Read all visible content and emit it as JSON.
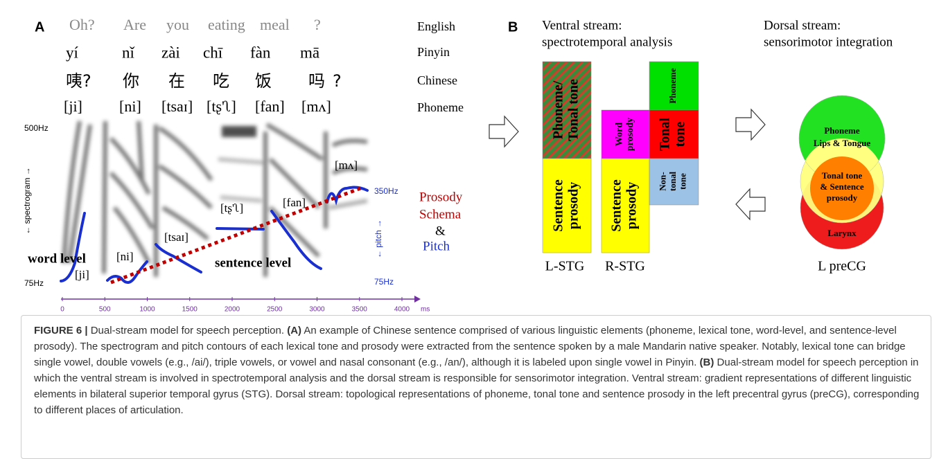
{
  "panel_a": {
    "label": "A",
    "row_labels": [
      "English",
      "Pinyin",
      "Chinese",
      "Phoneme"
    ],
    "english": [
      "Oh?",
      "Are",
      "you",
      "eating",
      "meal",
      "?"
    ],
    "pinyin": [
      "yí",
      "nǐ",
      "zài",
      "chī",
      "fàn",
      "mā"
    ],
    "chinese": [
      "咦?",
      "你",
      "在",
      "吃",
      "饭",
      "吗",
      "?"
    ],
    "phoneme": [
      "[ji]",
      "[ni]",
      "[tsaɪ]",
      "[tʂ'ʅ]",
      "[fan]",
      "[mʌ]"
    ],
    "spectrogram": {
      "top": "500Hz",
      "bottom": "75Hz",
      "axis_label": "← spectrogram →"
    },
    "pitch": {
      "top": "350Hz",
      "bottom": "75Hz",
      "axis_label": "← pitch →"
    },
    "annotations": {
      "word": "word  level",
      "sentence": "sentence  level"
    },
    "segment_labels": [
      "[ji]",
      "[ni]",
      "[tsaɪ]",
      "[tʂ'ʅ]",
      "[fan]",
      "[mʌ]"
    ],
    "legend": [
      "Prosody",
      "Schema",
      "&",
      "Pitch"
    ],
    "x_ticks": [
      0,
      500,
      1000,
      1500,
      2000,
      2500,
      3000,
      3500,
      4000
    ],
    "x_unit": "ms"
  },
  "panel_b": {
    "label": "B",
    "ventral_title": [
      "Ventral stream:",
      "spectrotemporal analysis"
    ],
    "dorsal_title": [
      "Dorsal stream:",
      "sensorimotor integration"
    ],
    "blocks": [
      {
        "lines": [
          "Phoneme/",
          "Tonal tone"
        ]
      },
      {
        "lines": [
          "Sentence",
          "prosody"
        ]
      },
      {
        "lines": [
          "Word",
          "prosody"
        ]
      },
      {
        "lines": [
          "Sentence",
          "prosody"
        ]
      },
      {
        "lines": [
          "Phoneme"
        ]
      },
      {
        "lines": [
          "Tonal",
          "tone"
        ]
      },
      {
        "lines": [
          "Non-",
          "tonal",
          "tone"
        ]
      }
    ],
    "column_labels": [
      "L-STG",
      "R-STG"
    ],
    "circles": {
      "top": [
        "Phoneme",
        "Lips & Tongue"
      ],
      "middle": [
        "Tonal tone",
        "& Sentence",
        "prosody"
      ],
      "bottom": [
        "Larynx"
      ]
    },
    "circle_label": "L preCG"
  },
  "caption": {
    "label": "FIGURE 6 |",
    "title": "Dual-stream model for speech perception.",
    "a_label": "(A)",
    "a_text": "An example of Chinese sentence comprised of various linguistic elements (phoneme, lexical tone, word-level, and sentence-level prosody). The spectrogram and pitch contours of each lexical tone and prosody were extracted from the sentence spoken by a male Mandarin native speaker. Notably, lexical tone can bridge single vowel, double vowels (e.g., /ai/), triple vowels, or vowel and nasal consonant (e.g., /an/), although it is labeled upon single vowel in Pinyin.",
    "b_label": "(B)",
    "b_text": "Dual-stream model for speech perception in which the ventral stream is involved in spectrotemporal analysis and the dorsal stream is responsible for sensorimotor integration. Ventral stream: gradient representations of different linguistic elements in bilateral superior temporal gyrus (STG). Dorsal stream: topological representations of phoneme, tonal tone and sentence prosody in the left precentral gyrus (preCG), corresponding to different places of articulation."
  }
}
